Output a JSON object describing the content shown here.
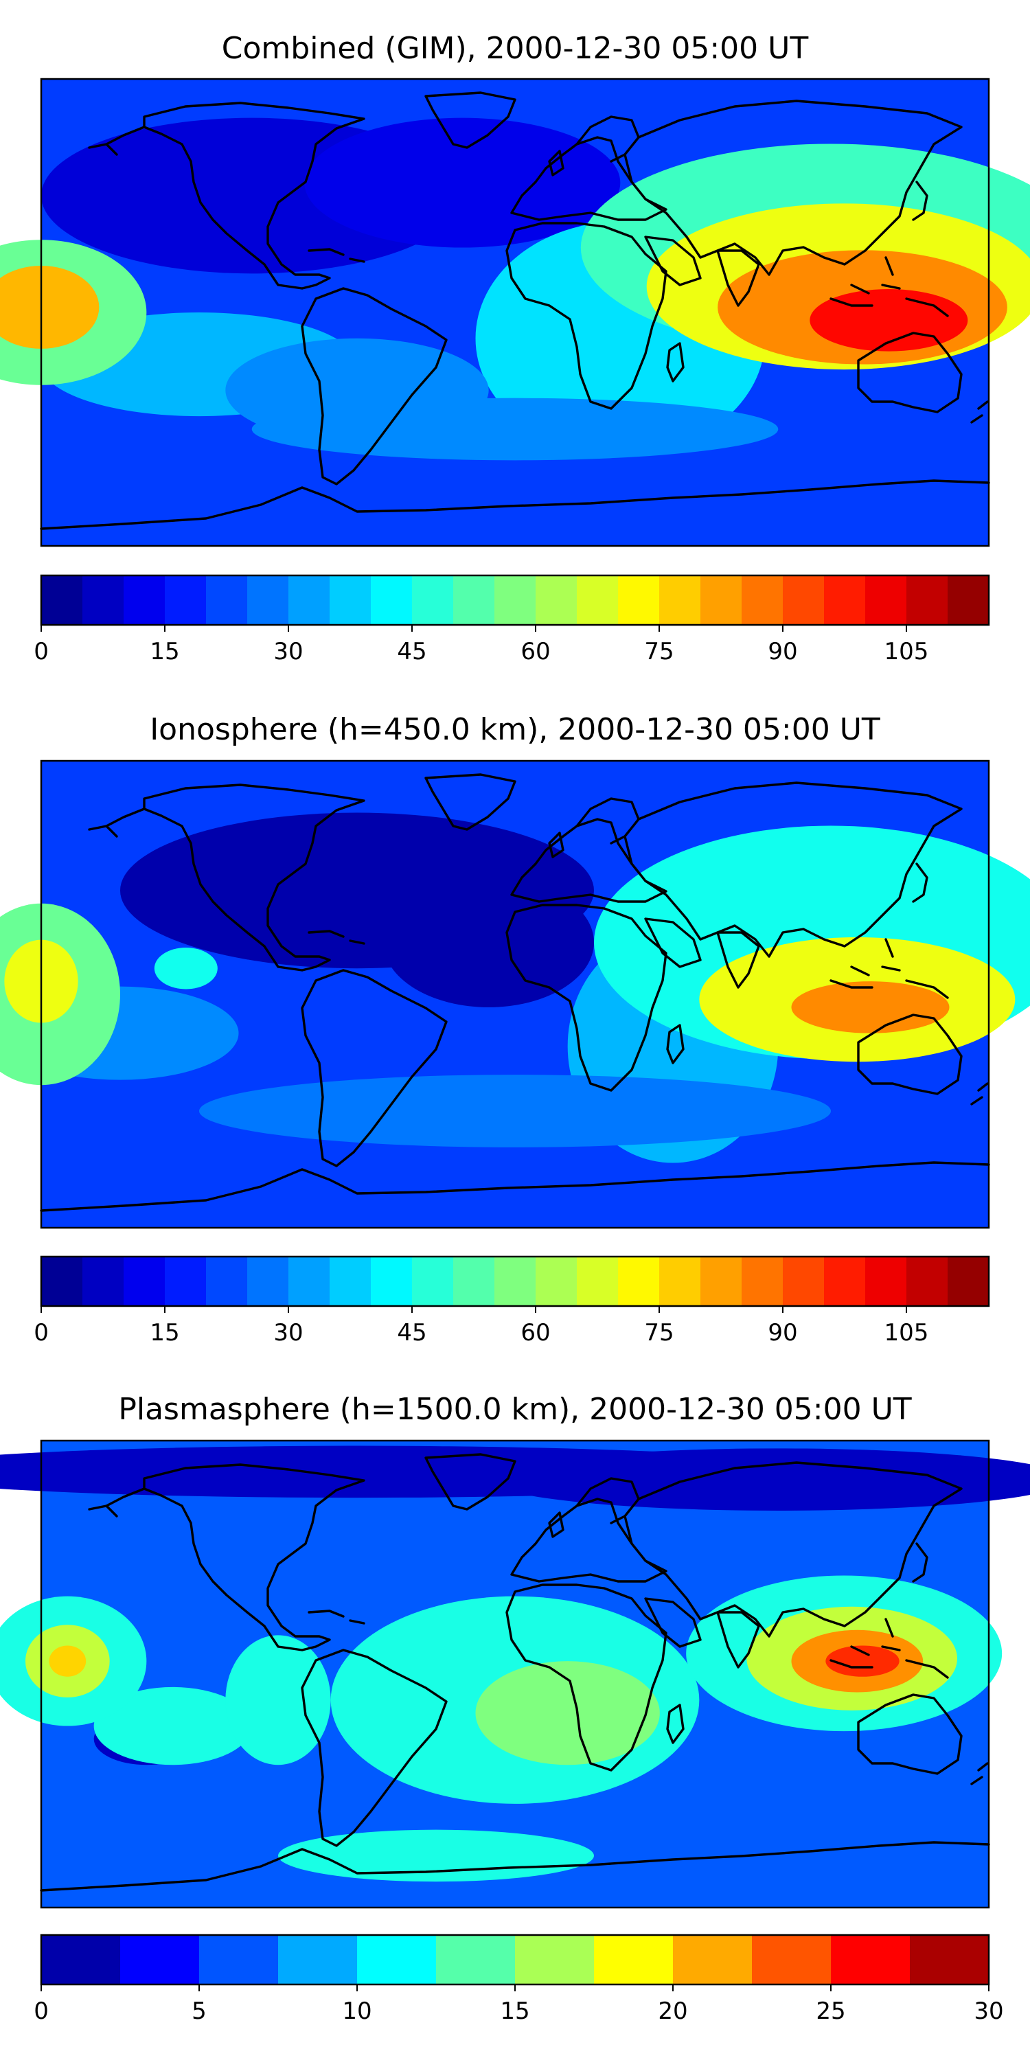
{
  "chart_data": [
    {
      "type": "heatmap",
      "title": "Combined (GIM), 2000-12-30 05:00 UT",
      "colorbar": {
        "min": 0,
        "max": 115,
        "step": 5,
        "tick_values": [
          0,
          15,
          30,
          45,
          60,
          75,
          90,
          105
        ],
        "tick_labels": [
          "0",
          "15",
          "30",
          "45",
          "60",
          "75",
          "90",
          "105"
        ]
      },
      "peaks": [
        {
          "where": "west edge equator",
          "lon": -180,
          "lat": 0,
          "level": 80
        },
        {
          "where": "Indonesia / New Guinea",
          "lon": 140,
          "lat": -3,
          "level": 100
        }
      ]
    },
    {
      "type": "heatmap",
      "title": "Ionosphere  (h=450.0 km), 2000-12-30 05:00 UT",
      "colorbar": {
        "min": 0,
        "max": 115,
        "step": 5,
        "tick_values": [
          0,
          15,
          30,
          45,
          60,
          75,
          90,
          105
        ],
        "tick_labels": [
          "0",
          "15",
          "30",
          "45",
          "60",
          "75",
          "90",
          "105"
        ]
      },
      "peaks": [
        {
          "where": "west edge equator",
          "lon": -180,
          "lat": 0,
          "level": 70
        },
        {
          "where": "Indonesia",
          "lon": 135,
          "lat": -5,
          "level": 85
        }
      ]
    },
    {
      "type": "heatmap",
      "title": "Plasmasphere (h=1500.0 km), 2000-12-30 05:00 UT",
      "colorbar": {
        "min": 0,
        "max": 30,
        "step": 2.5,
        "tick_values": [
          0,
          5,
          10,
          15,
          20,
          25,
          30
        ],
        "tick_labels": [
          "0",
          "5",
          "10",
          "15",
          "20",
          "25",
          "30"
        ]
      },
      "peaks": [
        {
          "where": "central Pacific",
          "lon": -170,
          "lat": 5,
          "level": 20
        },
        {
          "where": "Indonesia",
          "lon": 125,
          "lat": 5,
          "level": 25
        }
      ]
    }
  ],
  "colors": {
    "jet_scale": [
      "#00007f",
      "#0000ff",
      "#007fff",
      "#00ffff",
      "#7fff7f",
      "#ffff00",
      "#ff7f00",
      "#ff0000",
      "#7f0000"
    ],
    "coastline": "#000000",
    "frame": "#000000"
  }
}
